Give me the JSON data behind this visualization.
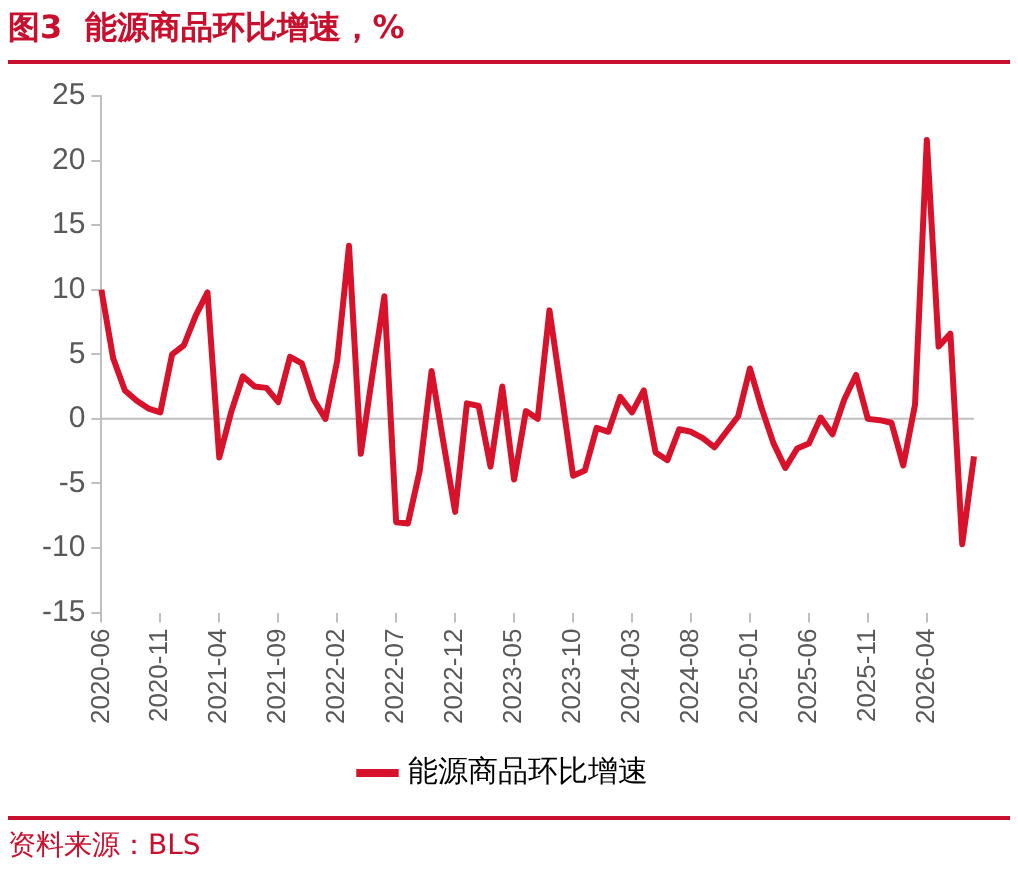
{
  "chart_data": {
    "type": "line",
    "title": "图3  能源商品环比增速，%",
    "categories": [
      "2020-06",
      null,
      null,
      null,
      null,
      "2020-11",
      null,
      null,
      null,
      null,
      "2021-04",
      null,
      null,
      null,
      null,
      "2021-09",
      null,
      null,
      null,
      null,
      "2022-02",
      null,
      null,
      null,
      null,
      "2022-07",
      null,
      null,
      null,
      null,
      "2022-12",
      null,
      null,
      null,
      null,
      "2023-05",
      null,
      null,
      null,
      null,
      "2023-10",
      null,
      null,
      null,
      null,
      "2024-03",
      null,
      null,
      null,
      null,
      "2024-08",
      null,
      null,
      null,
      null,
      "2025-01",
      null,
      null,
      null,
      null,
      "2025-06",
      null,
      null,
      null,
      null,
      "2025-11",
      null,
      null,
      null,
      null,
      "2026-04",
      null,
      null,
      null,
      null
    ],
    "series": [
      {
        "name": "能源商品环比增速",
        "color": "#d9122b",
        "values": [
          10,
          4.7,
          2.2,
          1.4,
          0.8,
          0.5,
          5.0,
          5.7,
          8.0,
          9.8,
          -3.0,
          0.5,
          3.3,
          2.5,
          2.4,
          1.3,
          4.8,
          4.3,
          1.5,
          0.0,
          4.5,
          13.4,
          -2.7,
          3.5,
          9.5,
          -8.0,
          -8.1,
          -4.0,
          3.7,
          -1.8,
          -7.2,
          1.2,
          1.0,
          -3.7,
          2.5,
          -4.7,
          0.6,
          0.0,
          8.4,
          2.1,
          -4.4,
          -4.0,
          -0.7,
          -1.0,
          1.7,
          0.5,
          2.2,
          -2.6,
          -3.2,
          -0.8,
          -1.0,
          -1.5,
          -2.2,
          -1.0,
          0.2,
          3.9,
          0.8,
          -1.9,
          -3.8,
          -2.3,
          -1.9,
          0.1,
          -1.2,
          1.5,
          3.4,
          0.0,
          -0.1,
          -0.3,
          -3.6,
          1.1,
          21.6,
          5.6,
          6.6,
          -9.7,
          -2.9
        ]
      }
    ],
    "ylim": [
      -15,
      25
    ],
    "yticks": [
      -15,
      -10,
      -5,
      0,
      5,
      10,
      15,
      20,
      25
    ],
    "grid": false,
    "ref_lines": [
      {
        "axis": "y",
        "value": 0,
        "color": "#bfbfbf"
      }
    ],
    "legend": "bottom",
    "marker": "none",
    "line_style": "solid",
    "annotations": [
      "资料来源：BLS"
    ]
  }
}
